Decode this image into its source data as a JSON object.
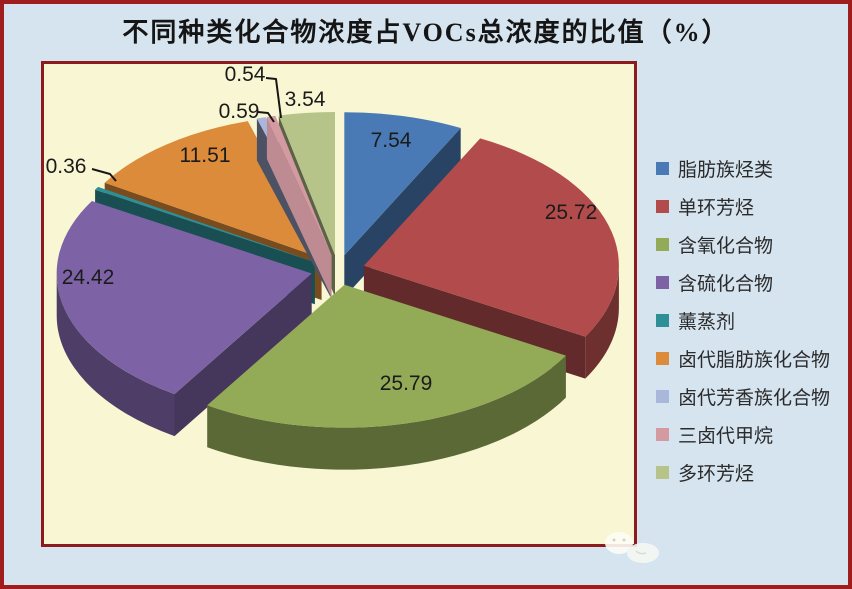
{
  "title": "不同种类化合物浓度占VOCs总浓度的比值（%）",
  "chart_data": {
    "type": "pie",
    "effect": "3d-exploded",
    "title": "不同种类化合物浓度占VOCs总浓度的比值（%）",
    "labels": [
      "脂肪族烃类",
      "单环芳烃",
      "含氧化合物",
      "含硫化合物",
      "薰蒸剂",
      "卤代脂肪族化合物",
      "卤代芳香族化合物",
      "三卤代甲烷",
      "多环芳烃"
    ],
    "values": [
      7.54,
      25.72,
      25.79,
      24.42,
      0.36,
      11.51,
      0.59,
      0.54,
      3.54
    ],
    "data_labels": [
      "7.54",
      "25.72",
      "25.79",
      "24.42",
      "0.36",
      "11.51",
      "0.59",
      "0.54",
      "3.54"
    ],
    "colors": [
      "#4a7ab5",
      "#b24c4c",
      "#93aa57",
      "#7d63a5",
      "#2e8f96",
      "#dc8b3a",
      "#a9b7db",
      "#d49aa2",
      "#b6c489"
    ],
    "start_angle_deg": 0,
    "direction": "clockwise",
    "legend_position": "right",
    "plot_bg": "#f9f7d3",
    "plot_border": "#8e1b1b",
    "outer_border": "#a01d1d",
    "page_bg": "#d6e4f0",
    "label_color": "#1b1b1b"
  },
  "legend": {
    "items": [
      {
        "label": "脂肪族烃类",
        "color": "#4a7ab5"
      },
      {
        "label": "单环芳烃",
        "color": "#b24c4c"
      },
      {
        "label": "含氧化合物",
        "color": "#93aa57"
      },
      {
        "label": "含硫化合物",
        "color": "#7d63a5"
      },
      {
        "label": "薰蒸剂",
        "color": "#2e8f96"
      },
      {
        "label": "卤代脂肪族化合物",
        "color": "#dc8b3a"
      },
      {
        "label": "卤代芳香族化合物",
        "color": "#a9b7db"
      },
      {
        "label": "三卤代甲烷",
        "color": "#d49aa2"
      },
      {
        "label": "多环芳烃",
        "color": "#b6c489"
      }
    ]
  }
}
